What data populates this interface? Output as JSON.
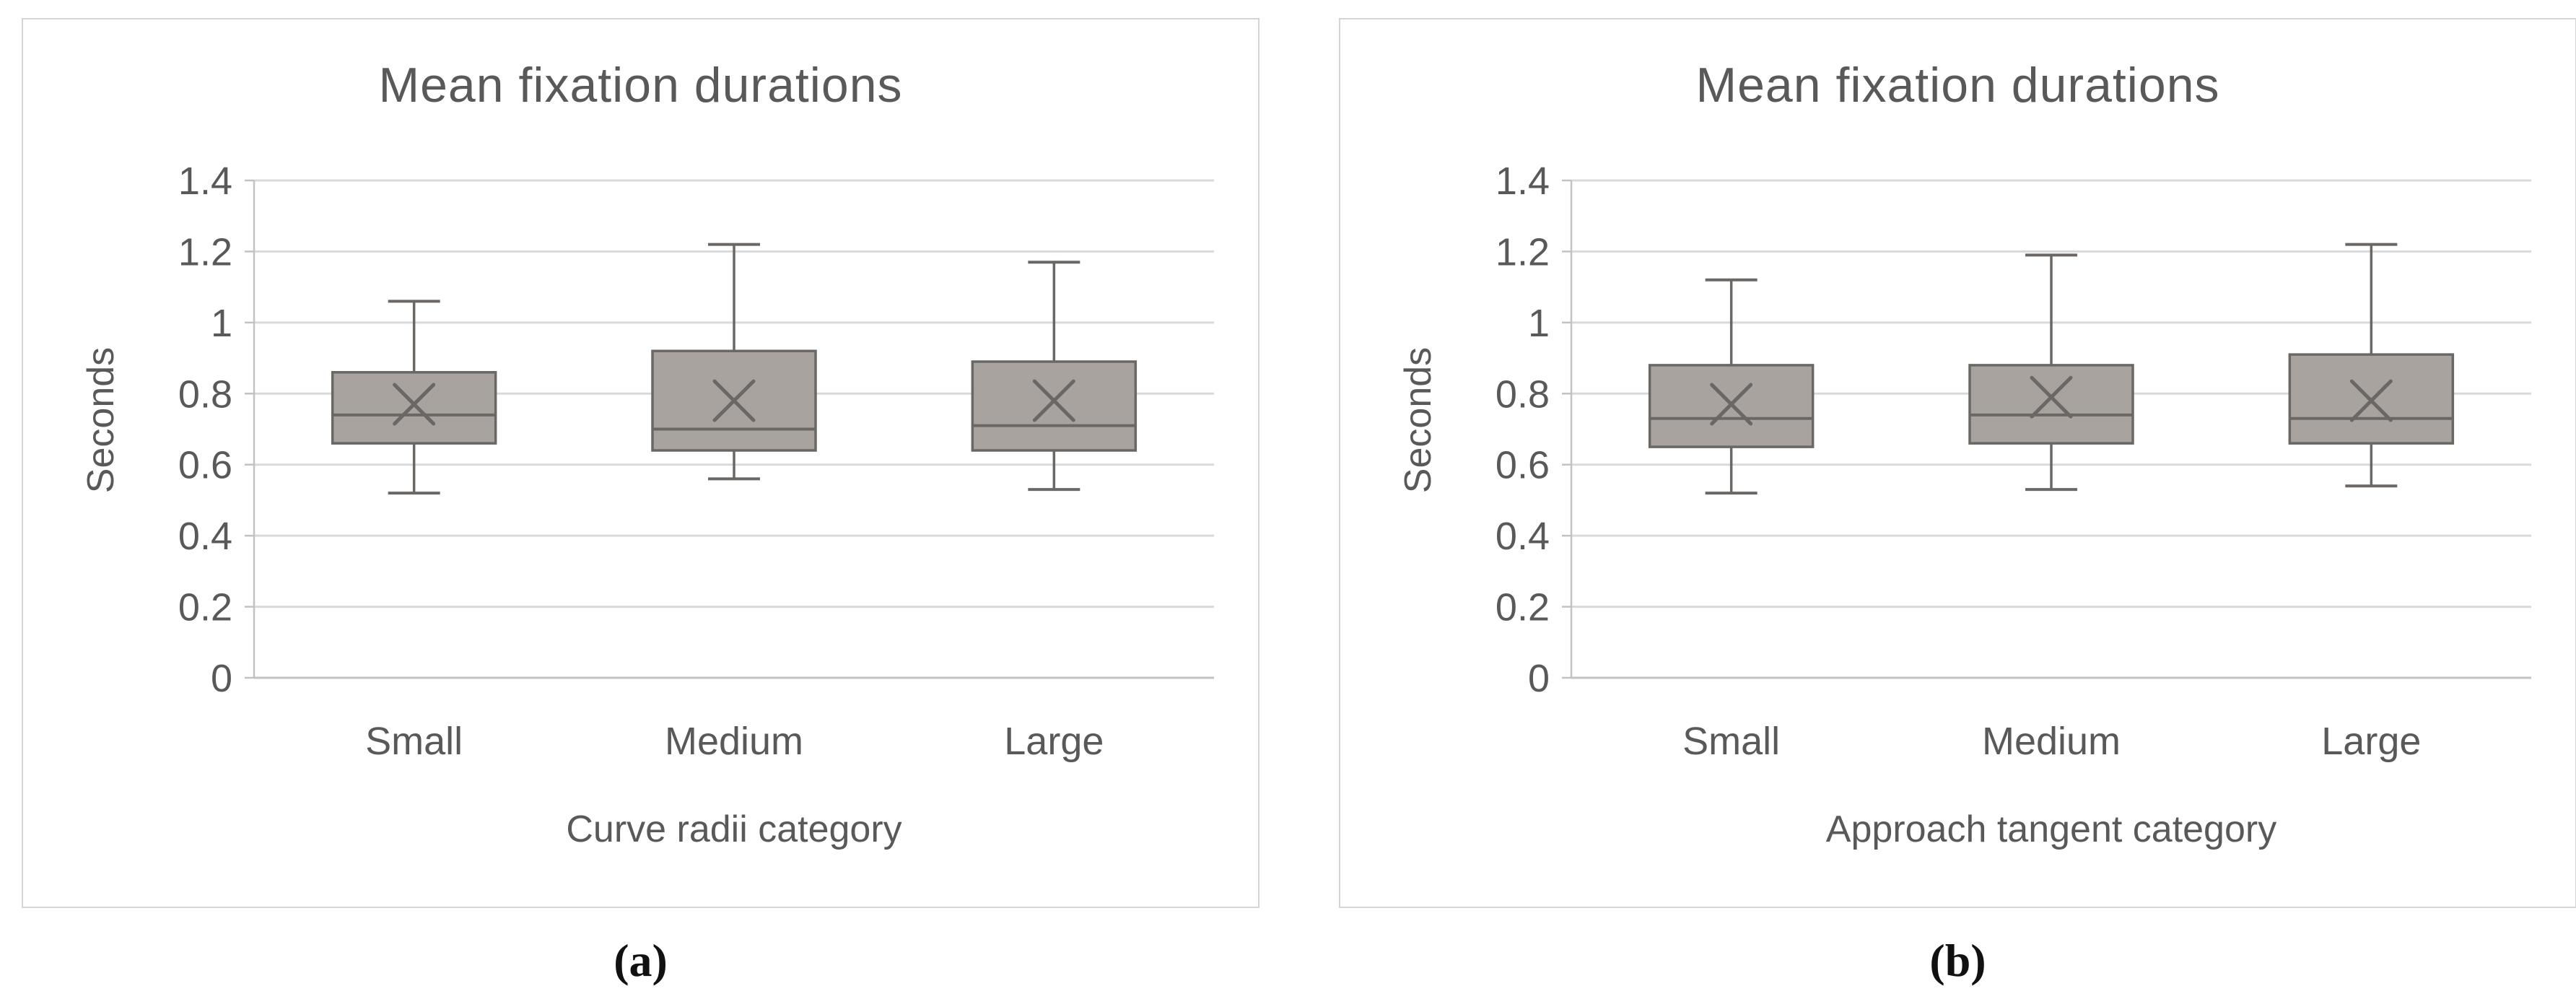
{
  "style": {
    "background": "#ffffff",
    "text_color": "#595959",
    "grid_color": "#d9d9d9",
    "axis_color": "#c2c2c2",
    "box_fill": "#a8a39e",
    "box_stroke": "#6a6764",
    "panel_border": "#d5d5d5",
    "caption_color": "#111111"
  },
  "chart_data": [
    {
      "type": "boxplot",
      "caption": "(a)",
      "title": "Mean fixation durations",
      "xlabel": "Curve radii category",
      "ylabel": "Seconds",
      "categories": [
        "Small",
        "Medium",
        "Large"
      ],
      "ylim": [
        0,
        1.4
      ],
      "ytick_step": 0.2,
      "ytick_labels": [
        "0",
        "0.2",
        "0.4",
        "0.6",
        "0.8",
        "1",
        "1.2",
        "1.4"
      ],
      "grid": true,
      "legend": false,
      "series": [
        {
          "category": "Small",
          "whisker_low": 0.52,
          "q1": 0.66,
          "median": 0.74,
          "q3": 0.86,
          "whisker_high": 1.06,
          "mean": 0.77
        },
        {
          "category": "Medium",
          "whisker_low": 0.56,
          "q1": 0.64,
          "median": 0.7,
          "q3": 0.92,
          "whisker_high": 1.22,
          "mean": 0.78
        },
        {
          "category": "Large",
          "whisker_low": 0.53,
          "q1": 0.64,
          "median": 0.71,
          "q3": 0.89,
          "whisker_high": 1.17,
          "mean": 0.78
        }
      ]
    },
    {
      "type": "boxplot",
      "caption": "(b)",
      "title": "Mean fixation durations",
      "xlabel": "Approach tangent category",
      "ylabel": "Seconds",
      "categories": [
        "Small",
        "Medium",
        "Large"
      ],
      "ylim": [
        0,
        1.4
      ],
      "ytick_step": 0.2,
      "ytick_labels": [
        "0",
        "0.2",
        "0.4",
        "0.6",
        "0.8",
        "1",
        "1.2",
        "1.4"
      ],
      "grid": true,
      "legend": false,
      "series": [
        {
          "category": "Small",
          "whisker_low": 0.52,
          "q1": 0.65,
          "median": 0.73,
          "q3": 0.88,
          "whisker_high": 1.12,
          "mean": 0.77
        },
        {
          "category": "Medium",
          "whisker_low": 0.53,
          "q1": 0.66,
          "median": 0.74,
          "q3": 0.88,
          "whisker_high": 1.19,
          "mean": 0.79
        },
        {
          "category": "Large",
          "whisker_low": 0.54,
          "q1": 0.66,
          "median": 0.73,
          "q3": 0.91,
          "whisker_high": 1.22,
          "mean": 0.78
        }
      ]
    }
  ]
}
